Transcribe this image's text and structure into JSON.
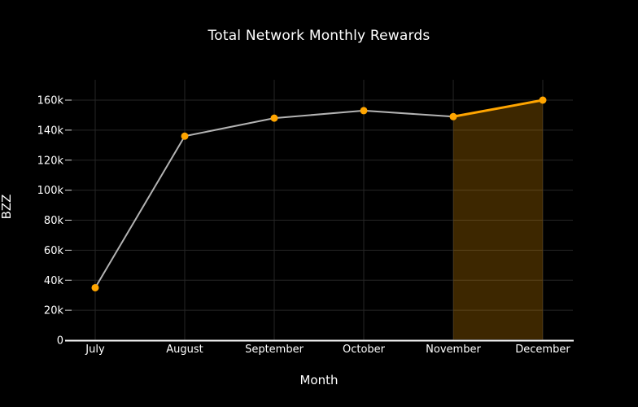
{
  "chart_data": {
    "type": "line",
    "title": "Total Network Monthly Rewards",
    "xlabel": "Month",
    "ylabel": "BZZ",
    "categories": [
      "July",
      "August",
      "September",
      "October",
      "November",
      "December"
    ],
    "series": [
      {
        "name": "Total Network Monthly Rewards",
        "values": [
          35000,
          136000,
          148000,
          153000,
          149000,
          160000
        ]
      }
    ],
    "y_tick_values": [
      0,
      20000,
      40000,
      60000,
      80000,
      100000,
      120000,
      140000,
      160000
    ],
    "y_tick_labels": [
      "0",
      "20k",
      "40k",
      "60k",
      "80k",
      "100k",
      "120k",
      "140k",
      "160k"
    ],
    "ylim": [
      0,
      173000
    ],
    "grid": true,
    "legend": "none",
    "highlight_region": {
      "from_category": "November",
      "to_category": "December",
      "fill_opacity": 0.24
    },
    "accent_segment": {
      "from_category": "November",
      "to_category": "December"
    },
    "colors": {
      "background": "#000000",
      "text": "#ffffff",
      "line": "#b3b3b3",
      "accent": "#ffa500",
      "gridline": "#262626",
      "tick": "#d9d9d9",
      "axis_line": "#ffffff"
    }
  }
}
